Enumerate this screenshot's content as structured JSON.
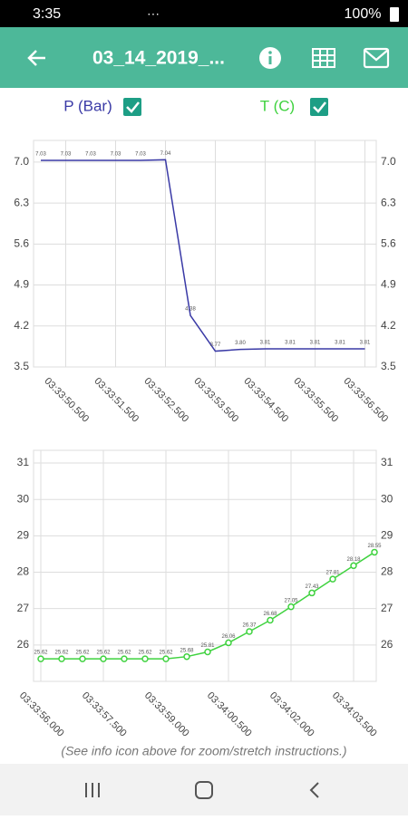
{
  "status_bar": {
    "time": "3:35",
    "battery": "100%"
  },
  "app_bar": {
    "title": "03_14_2019_..."
  },
  "chart_data": [
    {
      "type": "line",
      "categories": [
        null,
        "03:33:50.500",
        null,
        "03:33:51.500",
        null,
        "03:33:52.500",
        null,
        "03:33:53.500",
        null,
        "03:33:54.500",
        null,
        "03:33:55.500",
        null,
        "03:33:56.500"
      ],
      "series": [
        {
          "name": "P (Bar)",
          "color": "#3a3aa6",
          "values": [
            7.03,
            7.03,
            7.03,
            7.03,
            7.03,
            7.04,
            4.38,
            3.77,
            3.8,
            3.81,
            3.81,
            3.81,
            3.81,
            3.81
          ],
          "value_labels": [
            "7.03",
            "7.03",
            "7.03",
            "7.03",
            "7.03",
            "7.04",
            "4.38",
            "3.77",
            "3.80",
            "3.81",
            "3.81",
            "3.81",
            "3.81",
            "3.81"
          ]
        }
      ],
      "ylim": [
        3.5,
        7.37
      ],
      "yticks": [
        3.5,
        4.2,
        4.9,
        5.6,
        6.3,
        {
          "value": 7,
          "label": "7.0"
        }
      ],
      "grid": true,
      "markers": false
    },
    {
      "type": "line",
      "categories": [
        "03:33:56.000",
        null,
        null,
        "03:33:57.500",
        null,
        null,
        "03:33:59.000",
        null,
        null,
        "03:34:00.500",
        null,
        null,
        "03:34:02.000",
        null,
        null,
        "03:34:03.500",
        null
      ],
      "series": [
        {
          "name": "T (C)",
          "color": "#3fd23f",
          "values": [
            25.62,
            25.62,
            25.62,
            25.62,
            25.62,
            25.62,
            25.62,
            25.68,
            25.81,
            26.06,
            26.37,
            26.68,
            27.05,
            27.43,
            27.81,
            28.18,
            28.55
          ]
        }
      ],
      "ylim": [
        25.0,
        31.35
      ],
      "yticks": [
        26,
        27,
        28,
        29,
        30,
        31
      ],
      "grid": true,
      "markers": true
    }
  ],
  "footer": {
    "note": "(See info icon above for zoom/stretch instructions.)"
  }
}
